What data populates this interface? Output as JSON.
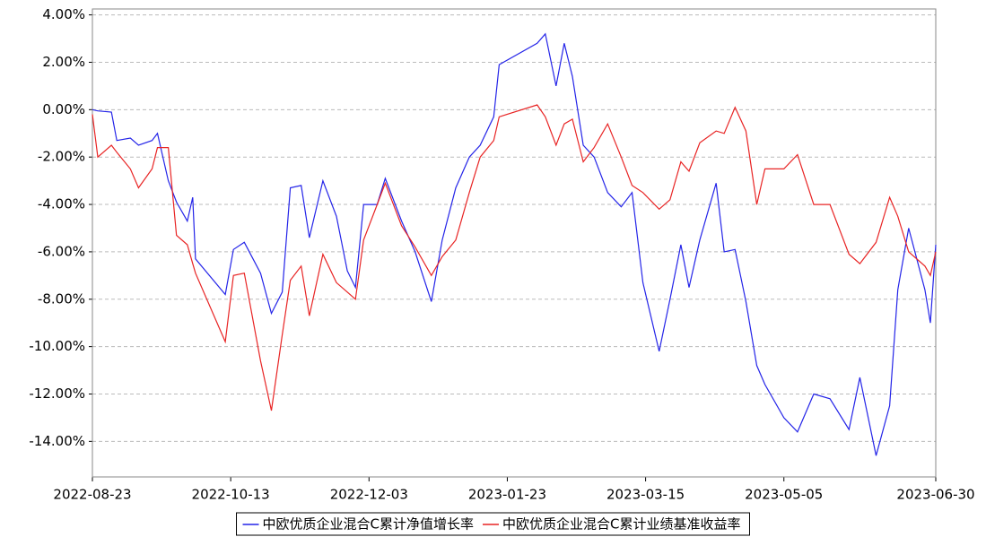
{
  "chart_data": {
    "type": "line",
    "x": [
      "2022-08-23",
      "2022-08-25",
      "2022-08-30",
      "2022-09-01",
      "2022-09-06",
      "2022-09-09",
      "2022-09-14",
      "2022-09-16",
      "2022-09-20",
      "2022-09-23",
      "2022-09-27",
      "2022-09-29",
      "2022-09-30",
      "2022-10-11",
      "2022-10-14",
      "2022-10-18",
      "2022-10-24",
      "2022-10-28",
      "2022-11-01",
      "2022-11-04",
      "2022-11-08",
      "2022-11-11",
      "2022-11-16",
      "2022-11-21",
      "2022-11-25",
      "2022-11-28",
      "2022-12-01",
      "2022-12-06",
      "2022-12-09",
      "2022-12-15",
      "2022-12-20",
      "2022-12-26",
      "2022-12-30",
      "2023-01-04",
      "2023-01-09",
      "2023-01-13",
      "2023-01-18",
      "2023-01-20",
      "2023-02-03",
      "2023-02-06",
      "2023-02-10",
      "2023-02-13",
      "2023-02-16",
      "2023-02-20",
      "2023-02-24",
      "2023-03-01",
      "2023-03-06",
      "2023-03-10",
      "2023-03-14",
      "2023-03-20",
      "2023-03-24",
      "2023-03-28",
      "2023-03-31",
      "2023-04-04",
      "2023-04-10",
      "2023-04-13",
      "2023-04-17",
      "2023-04-21",
      "2023-04-25",
      "2023-04-28",
      "2023-05-05",
      "2023-05-10",
      "2023-05-16",
      "2023-05-22",
      "2023-05-29",
      "2023-06-02",
      "2023-06-08",
      "2023-06-13",
      "2023-06-16",
      "2023-06-20",
      "2023-06-26",
      "2023-06-28",
      "2023-06-30"
    ],
    "series": [
      {
        "name": "中欧优质企业混合C累计净值增长率",
        "color": "#2424e8",
        "values": [
          0.0,
          -0.05,
          -0.1,
          -1.3,
          -1.2,
          -1.5,
          -1.3,
          -1.0,
          -3.0,
          -3.9,
          -4.7,
          -3.7,
          -6.3,
          -7.8,
          -5.9,
          -5.6,
          -6.9,
          -8.6,
          -7.7,
          -3.3,
          -3.2,
          -5.4,
          -3.0,
          -4.5,
          -6.8,
          -7.5,
          -4.0,
          -4.0,
          -2.9,
          -4.7,
          -6.0,
          -8.1,
          -5.5,
          -3.3,
          -2.0,
          -1.5,
          -0.3,
          1.9,
          2.8,
          3.2,
          1.0,
          2.8,
          1.4,
          -1.5,
          -2.0,
          -3.5,
          -4.1,
          -3.5,
          -7.3,
          -10.2,
          -8.0,
          -5.7,
          -7.5,
          -5.5,
          -3.1,
          -6.0,
          -5.9,
          -8.1,
          -10.8,
          -11.6,
          -13.0,
          -13.6,
          -12.0,
          -12.2,
          -13.5,
          -11.3,
          -14.6,
          -12.5,
          -7.6,
          -5.0,
          -7.6,
          -9.0,
          -5.7
        ]
      },
      {
        "name": "中欧优质企业混合C累计业绩基准收益率",
        "color": "#e82424",
        "values": [
          -0.2,
          -2.0,
          -1.5,
          -1.8,
          -2.5,
          -3.3,
          -2.5,
          -1.6,
          -1.6,
          -5.3,
          -5.7,
          -6.5,
          -6.9,
          -9.8,
          -7.0,
          -6.9,
          -10.6,
          -12.7,
          -9.5,
          -7.2,
          -6.6,
          -8.7,
          -6.1,
          -7.3,
          -7.7,
          -8.0,
          -5.5,
          -4.0,
          -3.1,
          -4.9,
          -5.8,
          -7.0,
          -6.2,
          -5.5,
          -3.5,
          -2.0,
          -1.3,
          -0.3,
          0.2,
          -0.3,
          -1.5,
          -0.6,
          -0.4,
          -2.2,
          -1.6,
          -0.6,
          -2.0,
          -3.2,
          -3.5,
          -4.2,
          -3.8,
          -2.2,
          -2.6,
          -1.4,
          -0.9,
          -1.0,
          0.1,
          -0.9,
          -4.0,
          -2.5,
          -2.5,
          -1.9,
          -4.0,
          -4.0,
          -6.1,
          -6.5,
          -5.6,
          -3.7,
          -4.5,
          -6.0,
          -6.6,
          -7.0,
          -6.0
        ]
      }
    ],
    "xlim": [
      "2022-08-23",
      "2023-06-30"
    ],
    "xticks": [
      "2022-08-23",
      "2022-10-13",
      "2022-12-03",
      "2023-01-23",
      "2023-03-15",
      "2023-05-05",
      "2023-06-30"
    ],
    "ylim": [
      -15.5,
      4.25
    ],
    "yticks": [
      {
        "value": 4,
        "label": "4.00%"
      },
      {
        "value": 2,
        "label": "2.00%"
      },
      {
        "value": 0,
        "label": "0.00%"
      },
      {
        "value": -2,
        "label": "-2.00%"
      },
      {
        "value": -4,
        "label": "-4.00%"
      },
      {
        "value": -6,
        "label": "-6.00%"
      },
      {
        "value": -8,
        "label": "-8.00%"
      },
      {
        "value": -10,
        "label": "-10.00%"
      },
      {
        "value": -12,
        "label": "-12.00%"
      },
      {
        "value": -14,
        "label": "-14.00%"
      }
    ],
    "grid": true,
    "legend": "bottom"
  }
}
